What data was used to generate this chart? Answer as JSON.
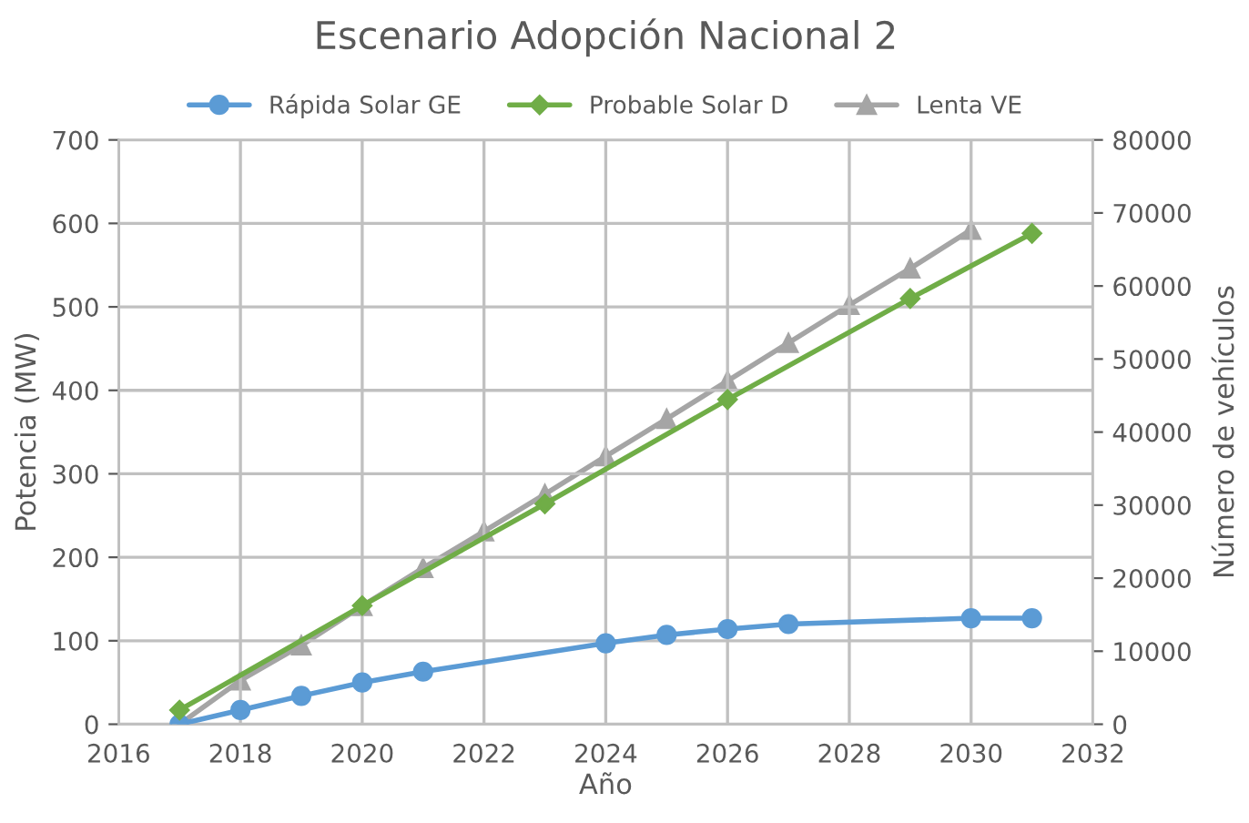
{
  "chart_data": {
    "type": "line",
    "title": "Escenario Adopción Nacional 2",
    "xlabel": "Año",
    "ylabel": "Potencia (MW)",
    "y2label": "Número de vehículos",
    "series": [
      {
        "name": "Rápida Solar GE",
        "color": "#5b9bd5",
        "marker": "circle",
        "x": [
          2017,
          2018,
          2019,
          2020,
          2021,
          2024,
          2025,
          2026,
          2027,
          2030,
          2031
        ],
        "values": [
          0,
          17,
          34,
          50,
          63,
          97,
          107,
          114,
          120,
          127,
          127
        ]
      },
      {
        "name": "Probable Solar D",
        "color": "#70ad47",
        "marker": "diamond",
        "x": [
          2017,
          2020,
          2023,
          2026,
          2029,
          2031
        ],
        "values": [
          17,
          142,
          264,
          389,
          510,
          588
        ]
      },
      {
        "name": "Lenta VE",
        "color": "#a5a5a5",
        "marker": "triangle",
        "axis": "y2",
        "x": [
          2017,
          2018,
          2019,
          2020,
          2021,
          2022,
          2023,
          2024,
          2025,
          2026,
          2027,
          2028,
          2029,
          2030
        ],
        "values": [
          0,
          6000,
          10800,
          16200,
          21400,
          26400,
          31500,
          36700,
          41800,
          47000,
          52200,
          57400,
          62400,
          67700
        ]
      }
    ],
    "xlim": [
      2016,
      2032
    ],
    "xticks": [
      2016,
      2018,
      2020,
      2022,
      2024,
      2026,
      2028,
      2030,
      2032
    ],
    "ylim": [
      0,
      700
    ],
    "yticks": [
      0,
      100,
      200,
      300,
      400,
      500,
      600,
      700
    ],
    "y2lim": [
      0,
      80000
    ],
    "y2ticks": [
      0,
      10000,
      20000,
      30000,
      40000,
      50000,
      60000,
      70000,
      80000
    ],
    "grid": true,
    "legend": "top",
    "line_style": "solid"
  }
}
